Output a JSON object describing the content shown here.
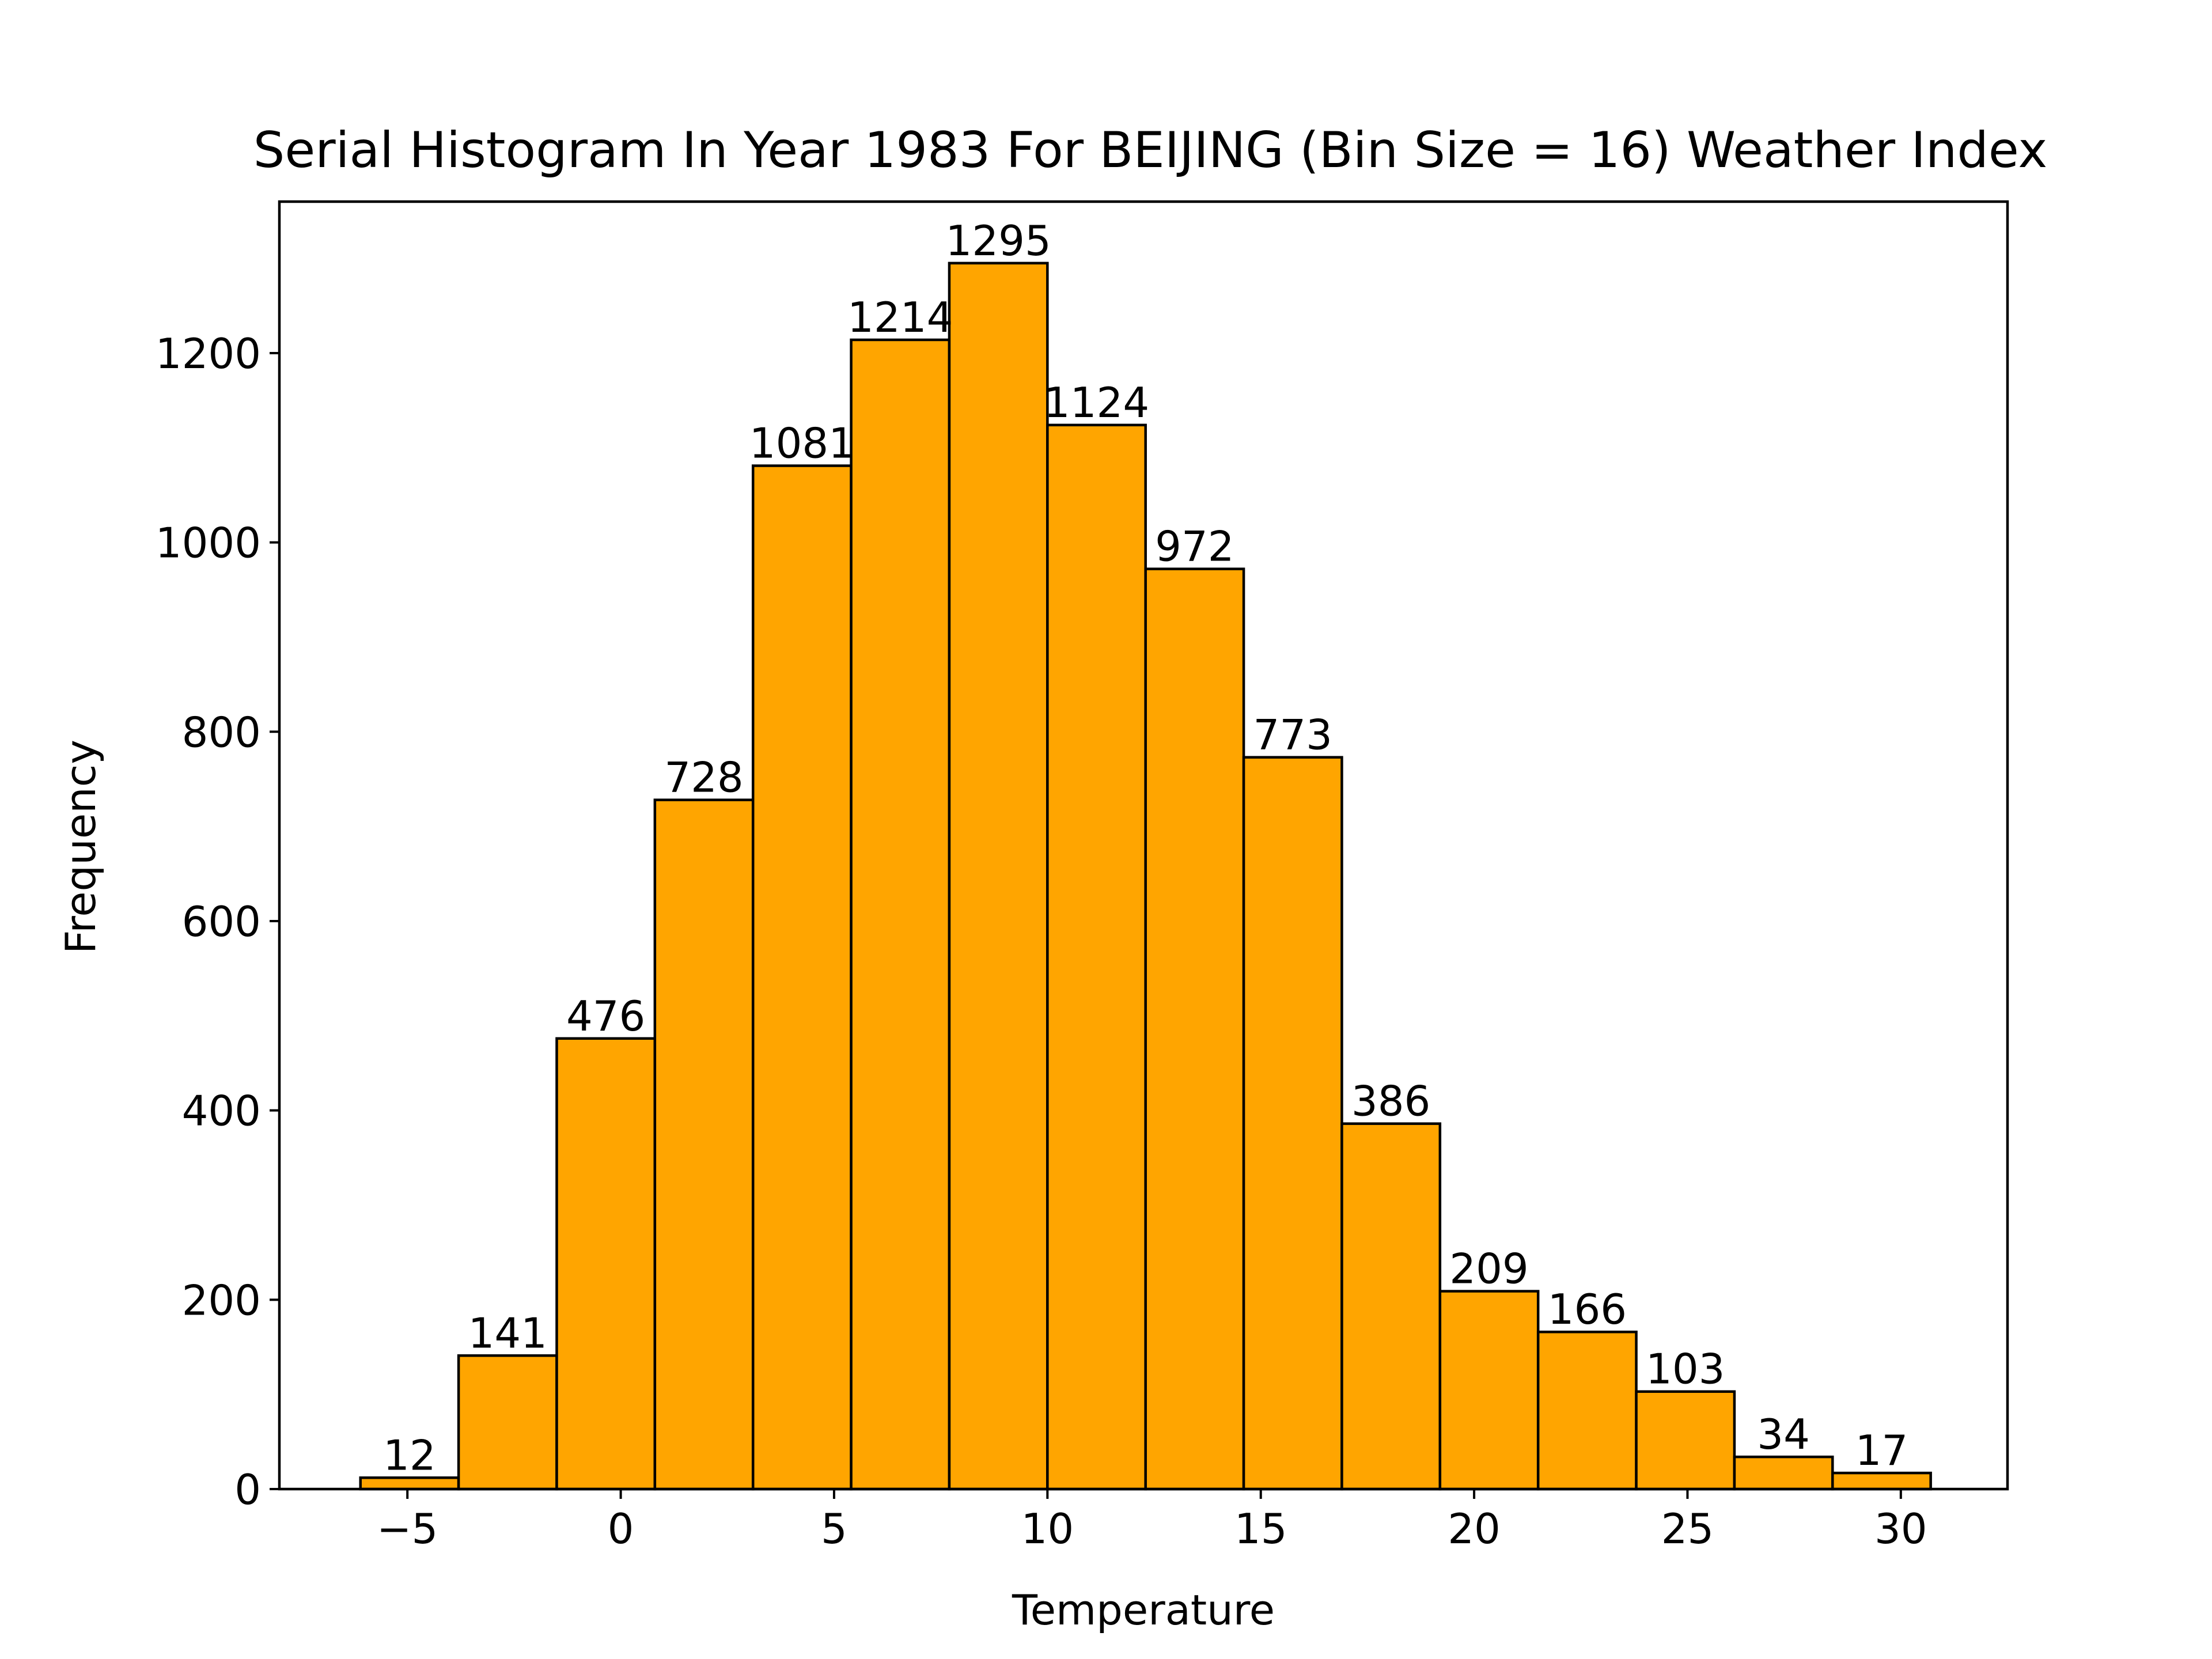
{
  "chart_data": {
    "type": "bar",
    "title": "Serial Histogram In Year 1983 For BEIJING (Bin Size = 16) Weather Index",
    "xlabel": "Temperature",
    "ylabel": "Frequency",
    "bin_edges": [
      -6.1,
      -3.8,
      -1.5,
      0.8,
      3.1,
      5.4,
      7.7,
      10.0,
      12.3,
      14.6,
      16.9,
      19.2,
      21.5,
      23.8,
      26.1,
      28.4,
      30.7
    ],
    "values": [
      12,
      141,
      476,
      728,
      1081,
      1214,
      1295,
      1124,
      972,
      773,
      386,
      209,
      166,
      103,
      34,
      17
    ],
    "xlim": [
      -8,
      32.5
    ],
    "ylim": [
      0,
      1360
    ],
    "x_ticks": [
      -5,
      0,
      5,
      10,
      15,
      20,
      25,
      30
    ],
    "x_tick_labels": [
      "−5",
      "0",
      "5",
      "10",
      "15",
      "20",
      "25",
      "30"
    ],
    "y_ticks": [
      0,
      200,
      400,
      600,
      800,
      1000,
      1200
    ],
    "y_tick_labels": [
      "0",
      "200",
      "400",
      "600",
      "800",
      "1000",
      "1200"
    ],
    "bar_color": "#FFA500",
    "edge_color": "#000000",
    "grid": false,
    "legend": "none"
  }
}
